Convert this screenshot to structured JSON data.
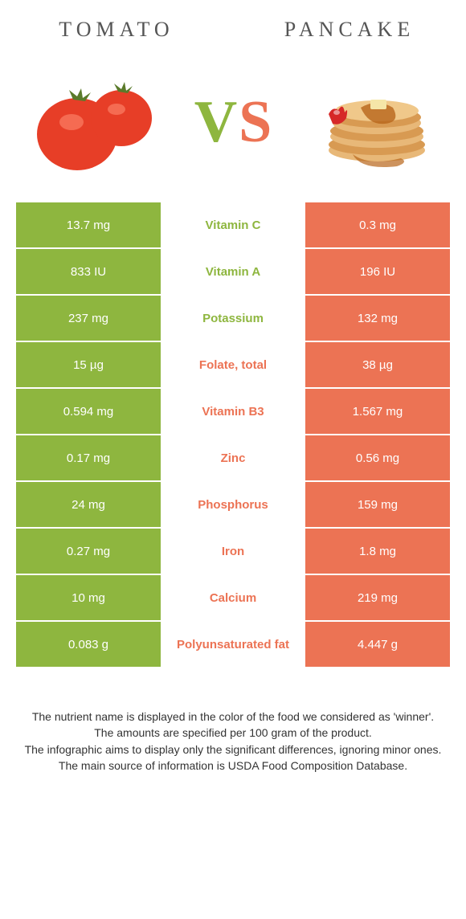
{
  "header": {
    "left": "TOMATO",
    "right": "PANCAKE"
  },
  "vs": {
    "v_text": "V",
    "s_text": "S"
  },
  "colors": {
    "tomato_bg": "#8eb63f",
    "pancake_bg": "#ec7354",
    "tomato_text": "#8eb63f",
    "pancake_text": "#ec7354",
    "vs_v": "#8eb63f",
    "vs_s": "#ec7354"
  },
  "rows": [
    {
      "left": "13.7 mg",
      "name": "Vitamin C",
      "right": "0.3 mg",
      "winner": "tomato"
    },
    {
      "left": "833 IU",
      "name": "Vitamin A",
      "right": "196 IU",
      "winner": "tomato"
    },
    {
      "left": "237 mg",
      "name": "Potassium",
      "right": "132 mg",
      "winner": "tomato"
    },
    {
      "left": "15 µg",
      "name": "Folate, total",
      "right": "38 µg",
      "winner": "pancake"
    },
    {
      "left": "0.594 mg",
      "name": "Vitamin B3",
      "right": "1.567 mg",
      "winner": "pancake"
    },
    {
      "left": "0.17 mg",
      "name": "Zinc",
      "right": "0.56 mg",
      "winner": "pancake"
    },
    {
      "left": "24 mg",
      "name": "Phosphorus",
      "right": "159 mg",
      "winner": "pancake"
    },
    {
      "left": "0.27 mg",
      "name": "Iron",
      "right": "1.8 mg",
      "winner": "pancake"
    },
    {
      "left": "10 mg",
      "name": "Calcium",
      "right": "219 mg",
      "winner": "pancake"
    },
    {
      "left": "0.083 g",
      "name": "Polyunsaturated fat",
      "right": "4.447 g",
      "winner": "pancake"
    }
  ],
  "footer": {
    "line1": "The nutrient name is displayed in the color of the food we considered as 'winner'.",
    "line2": "The amounts are specified per 100 gram of the product.",
    "line3": "The infographic aims to display only the significant differences, ignoring minor ones.",
    "line4": "The main source of information is USDA Food Composition Database."
  }
}
